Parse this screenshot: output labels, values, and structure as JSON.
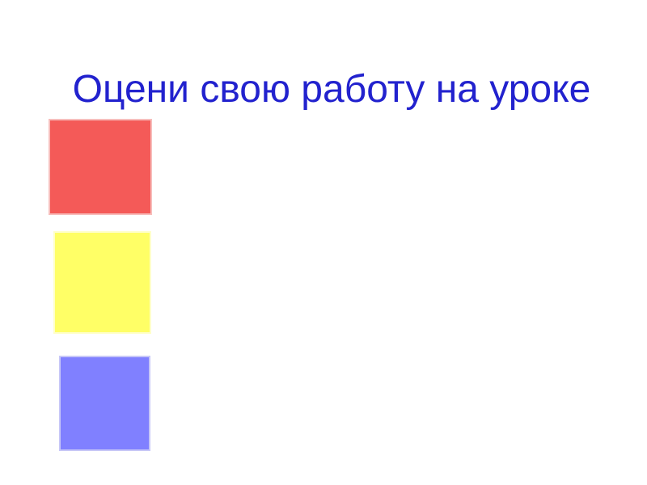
{
  "slide": {
    "title": "Оцени свою работу на уроке",
    "title_color": "#2222CE",
    "background_color": "#FFFFFF"
  },
  "squares": [
    {
      "id": "red",
      "semantic": "red-square",
      "color": "#F45A58",
      "border_color": "#F7BDBB"
    },
    {
      "id": "yellow",
      "semantic": "yellow-square",
      "color": "#FFFF66",
      "border_color": "#FFFFC9"
    },
    {
      "id": "blue",
      "semantic": "blue-square",
      "color": "#8080FF",
      "border_color": "#C7C7F7"
    }
  ]
}
